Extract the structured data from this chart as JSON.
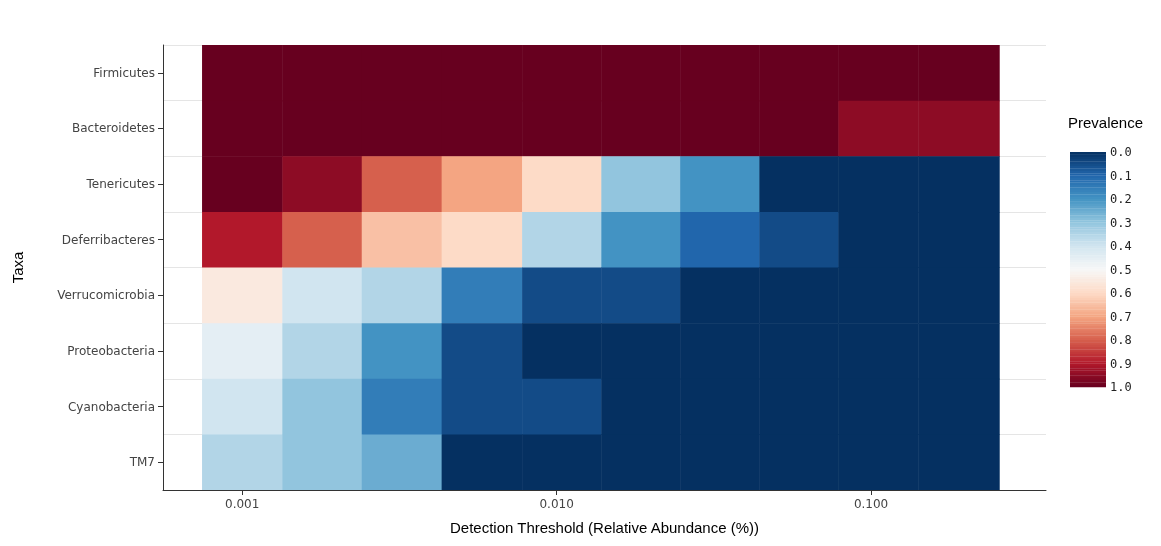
{
  "chart_data": {
    "type": "heatmap",
    "xlabel": "Detection Threshold (Relative Abundance (%))",
    "ylabel": "Taxa",
    "clabel": "Prevalence",
    "x": [
      0.001,
      0.0018,
      0.0032,
      0.0058,
      0.0104,
      0.0185,
      0.033,
      0.059,
      0.105,
      0.19
    ],
    "y_categories": [
      "Firmicutes",
      "Bacteroidetes",
      "Tenericutes",
      "Deferribacteres",
      "Verrucomicrobia",
      "Proteobacteria",
      "Cyanobacteria",
      "TM7"
    ],
    "cells": [
      [
        1,
        1,
        1,
        1,
        1,
        1,
        1,
        1,
        1,
        1
      ],
      [
        1,
        1,
        1,
        1,
        1,
        1,
        1,
        1,
        0.95,
        0.95
      ],
      [
        1,
        0.95,
        0.8,
        0.7,
        0.6,
        0.3,
        0.2,
        0,
        0,
        0
      ],
      [
        0.9,
        0.8,
        0.65,
        0.6,
        0.35,
        0.2,
        0.1,
        0.05,
        0,
        0
      ],
      [
        0.55,
        0.4,
        0.35,
        0.15,
        0.05,
        0.05,
        0,
        0,
        0,
        0
      ],
      [
        0.45,
        0.35,
        0.2,
        0.05,
        0,
        0,
        0,
        0,
        0,
        0
      ],
      [
        0.4,
        0.3,
        0.15,
        0.05,
        0.05,
        0,
        0,
        0,
        0,
        0
      ],
      [
        0.35,
        0.3,
        0.25,
        0,
        0,
        0,
        0,
        0,
        0,
        0
      ]
    ],
    "log": "x",
    "xlim": [
      0.00056,
      0.36
    ],
    "xticks": [
      {
        "value": 0.001,
        "label": "0.001"
      },
      {
        "value": 0.01,
        "label": "0.010"
      },
      {
        "value": 0.1,
        "label": "0.100"
      }
    ],
    "clim": [
      0,
      1
    ],
    "cticks": [
      {
        "value": 0,
        "label": "0.0"
      },
      {
        "value": 0.1,
        "label": "0.1"
      },
      {
        "value": 0.2,
        "label": "0.2"
      },
      {
        "value": 0.3,
        "label": "0.3"
      },
      {
        "value": 0.4,
        "label": "0.4"
      },
      {
        "value": 0.5,
        "label": "0.5"
      },
      {
        "value": 0.6,
        "label": "0.6"
      },
      {
        "value": 0.7,
        "label": "0.7"
      },
      {
        "value": 0.8,
        "label": "0.8"
      },
      {
        "value": 0.9,
        "label": "0.9"
      },
      {
        "value": 1,
        "label": "1.0"
      }
    ],
    "grid": true
  }
}
